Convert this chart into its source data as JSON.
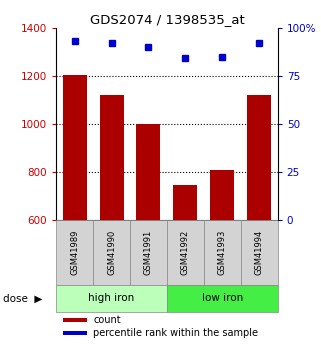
{
  "title": "GDS2074 / 1398535_at",
  "categories": [
    "GSM41989",
    "GSM41990",
    "GSM41991",
    "GSM41992",
    "GSM41993",
    "GSM41994"
  ],
  "bar_values": [
    1205,
    1120,
    998,
    745,
    808,
    1120
  ],
  "percentile_values": [
    93,
    92,
    90,
    84,
    85,
    92
  ],
  "bar_color": "#aa0000",
  "dot_color": "#0000cc",
  "ylim_left": [
    600,
    1400
  ],
  "ylim_right": [
    0,
    100
  ],
  "yticks_left": [
    600,
    800,
    1000,
    1200,
    1400
  ],
  "yticks_right": [
    0,
    25,
    50,
    75,
    100
  ],
  "right_tick_labels": [
    "0",
    "25",
    "50",
    "75",
    "100%"
  ],
  "hgrid_values": [
    800,
    1000,
    1200
  ],
  "group_labels": [
    "high iron",
    "low iron"
  ],
  "group_colors": [
    "#bbffbb",
    "#44ee44"
  ],
  "dose_label": "dose",
  "legend_count_label": "count",
  "legend_pct_label": "percentile rank within the sample",
  "left_tick_color": "#cc0000",
  "right_tick_color": "#0000cc"
}
